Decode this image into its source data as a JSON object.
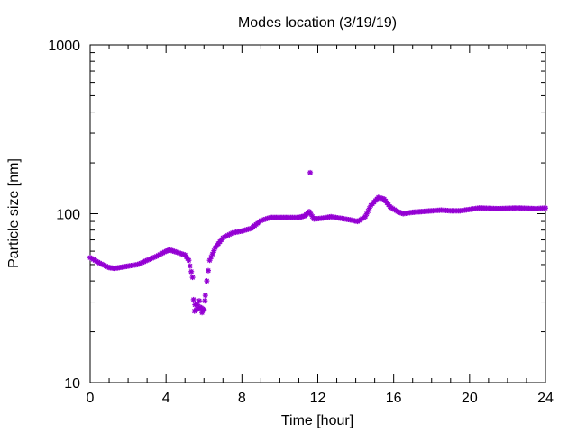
{
  "chart_data": {
    "type": "scatter",
    "title": "Modes location (3/19/19)",
    "xlabel": "Time [hour]",
    "ylabel": "Particle size [nm]",
    "xlim": [
      0,
      24
    ],
    "ylim": [
      10,
      1000
    ],
    "yscale": "log",
    "grid": false,
    "legend": "none",
    "marker_color": "#9400d3",
    "x_ticks": [
      0,
      4,
      8,
      12,
      16,
      20,
      24
    ],
    "x_tick_labels": [
      "0",
      "4",
      "8",
      "12",
      "16",
      "20",
      "24"
    ],
    "y_ticks": [
      10,
      100,
      1000
    ],
    "y_tick_labels": [
      "10",
      "100",
      "1000"
    ],
    "key_points": [
      [
        0.0,
        55
      ],
      [
        0.5,
        51
      ],
      [
        1.0,
        48
      ],
      [
        1.3,
        47.5
      ],
      [
        2.0,
        49
      ],
      [
        2.5,
        50
      ],
      [
        3.0,
        53
      ],
      [
        3.5,
        56
      ],
      [
        4.0,
        60
      ],
      [
        4.2,
        61
      ],
      [
        4.6,
        59
      ],
      [
        5.0,
        57
      ],
      [
        5.2,
        53
      ],
      [
        5.4,
        42
      ],
      [
        5.45,
        31
      ],
      [
        5.6,
        27
      ],
      [
        5.8,
        28
      ],
      [
        6.0,
        27
      ],
      [
        6.15,
        40
      ],
      [
        6.3,
        53
      ],
      [
        6.6,
        63
      ],
      [
        7.0,
        72
      ],
      [
        7.5,
        77
      ],
      [
        8.0,
        79
      ],
      [
        8.5,
        82
      ],
      [
        9.0,
        91
      ],
      [
        9.5,
        95
      ],
      [
        10.5,
        95
      ],
      [
        11.0,
        95
      ],
      [
        11.3,
        97
      ],
      [
        11.55,
        103
      ],
      [
        11.8,
        93
      ],
      [
        12.2,
        94
      ],
      [
        12.7,
        96
      ],
      [
        13.2,
        94
      ],
      [
        13.7,
        92
      ],
      [
        14.1,
        90
      ],
      [
        14.5,
        96
      ],
      [
        14.8,
        112
      ],
      [
        15.2,
        125
      ],
      [
        15.5,
        122
      ],
      [
        15.8,
        110
      ],
      [
        16.2,
        103
      ],
      [
        16.5,
        100
      ],
      [
        17.0,
        102
      ],
      [
        18.0,
        104
      ],
      [
        18.5,
        105
      ],
      [
        19.0,
        104
      ],
      [
        19.5,
        104
      ],
      [
        20.0,
        106
      ],
      [
        20.5,
        108
      ],
      [
        21.5,
        107
      ],
      [
        22.5,
        108
      ],
      [
        23.5,
        107
      ],
      [
        24.0,
        108
      ]
    ],
    "extra_points": [
      [
        5.5,
        26.5
      ],
      [
        5.65,
        29
      ],
      [
        5.75,
        30.5
      ],
      [
        5.9,
        26
      ],
      [
        6.05,
        30.5
      ],
      [
        11.6,
        175
      ]
    ]
  }
}
